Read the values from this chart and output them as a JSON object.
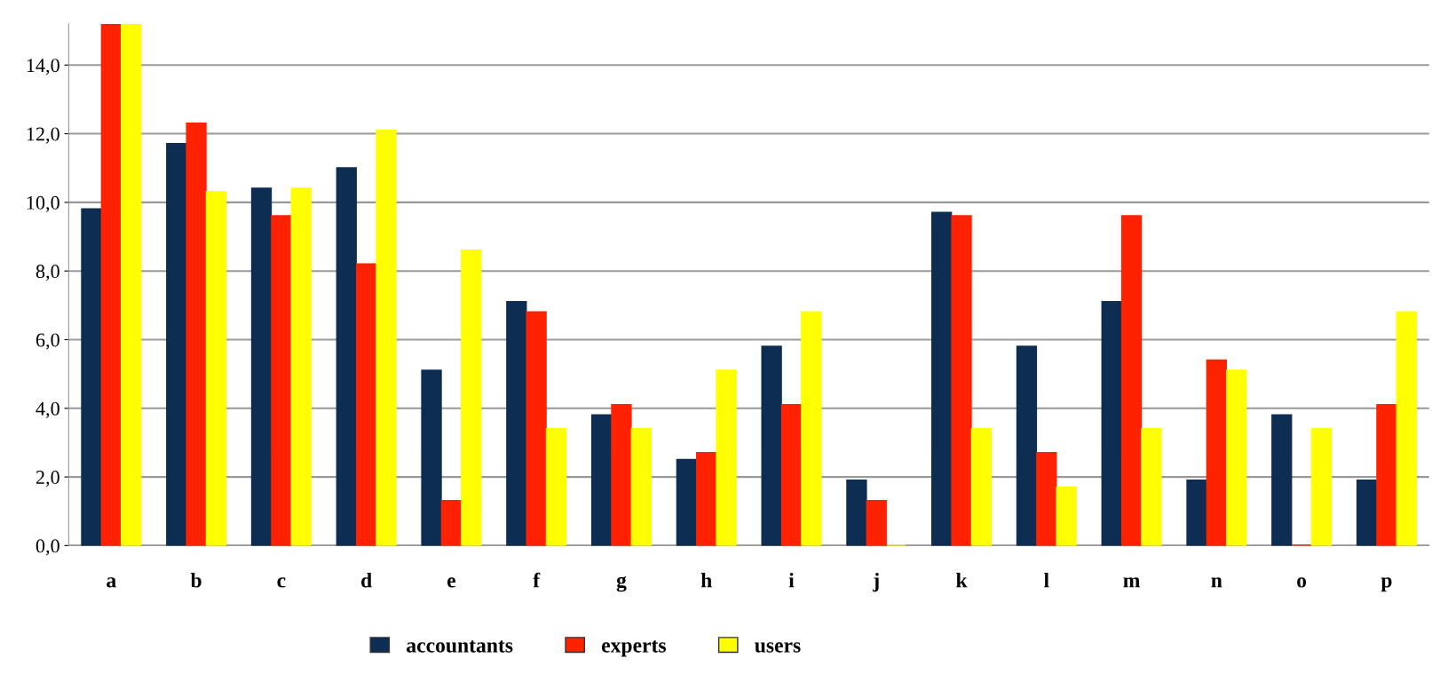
{
  "chart_data": {
    "type": "bar",
    "categories": [
      "a",
      "b",
      "c",
      "d",
      "e",
      "f",
      "g",
      "h",
      "i",
      "j",
      "k",
      "l",
      "m",
      "n",
      "o",
      "p"
    ],
    "series": [
      {
        "name": "accountants",
        "color": "#0d2d52",
        "values": [
          9.8,
          11.7,
          10.4,
          11.0,
          5.1,
          7.1,
          3.8,
          2.5,
          5.8,
          1.9,
          9.7,
          5.8,
          7.1,
          1.9,
          3.8,
          1.9
        ]
      },
      {
        "name": "experts",
        "color": "#ff2200",
        "values": [
          15.2,
          12.3,
          9.6,
          8.2,
          1.3,
          6.8,
          4.1,
          2.7,
          4.1,
          1.3,
          9.6,
          2.7,
          9.6,
          5.4,
          0.0,
          4.1
        ]
      },
      {
        "name": "users",
        "color": "#ffff00",
        "values": [
          15.2,
          10.3,
          10.4,
          12.1,
          8.6,
          3.4,
          3.4,
          5.1,
          6.8,
          0.0,
          3.4,
          1.7,
          3.4,
          5.1,
          3.4,
          6.8
        ]
      }
    ],
    "ylim": [
      0,
      15.2
    ],
    "yticks": [
      {
        "value": 0,
        "label": "0,0"
      },
      {
        "value": 2,
        "label": "2,0"
      },
      {
        "value": 4,
        "label": "4,0"
      },
      {
        "value": 6,
        "label": "6,0"
      },
      {
        "value": 8,
        "label": "8,0"
      },
      {
        "value": 10,
        "label": "10,0"
      },
      {
        "value": 12,
        "label": "12,0"
      },
      {
        "value": 14,
        "label": "14,0"
      }
    ],
    "grid": "y",
    "legend": "bottom"
  }
}
